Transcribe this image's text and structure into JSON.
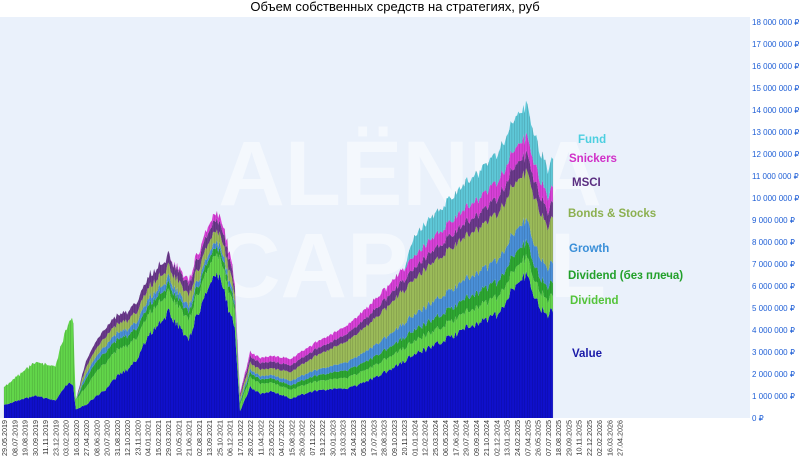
{
  "chart_data": {
    "type": "area",
    "stacked": true,
    "title": "Объем собственных средств на стратегиях, руб",
    "watermark": [
      "ALËNKA",
      "CAPITAL"
    ],
    "ylim": [
      0,
      18000000
    ],
    "y_ticks": [
      "0 ₽",
      "1 000 000 ₽",
      "2 000 000 ₽",
      "3 000 000 ₽",
      "4 000 000 ₽",
      "5 000 000 ₽",
      "6 000 000 ₽",
      "7 000 000 ₽",
      "8 000 000 ₽",
      "9 000 000 ₽",
      "10 000 000 ₽",
      "11 000 000 ₽",
      "12 000 000 ₽",
      "13 000 000 ₽",
      "14 000 000 ₽",
      "15 000 000 ₽",
      "16 000 000 ₽",
      "17 000 000 ₽",
      "18 000 000 ₽"
    ],
    "x_ticks": [
      "29.05.2019",
      "08.07.2019",
      "19.08.2019",
      "30.09.2019",
      "11.11.2019",
      "23.12.2019",
      "03.02.2020",
      "16.03.2020",
      "27.04.2020",
      "08.06.2020",
      "20.07.2020",
      "31.08.2020",
      "12.10.2020",
      "23.11.2020",
      "04.01.2021",
      "15.02.2021",
      "29.03.2021",
      "10.05.2021",
      "21.06.2021",
      "02.08.2021",
      "13.09.2021",
      "25.10.2021",
      "06.12.2021",
      "17.01.2022",
      "28.02.2022",
      "11.04.2022",
      "23.05.2022",
      "04.07.2022",
      "15.08.2022",
      "26.09.2022",
      "07.11.2022",
      "19.12.2022",
      "30.01.2023",
      "13.03.2023",
      "24.04.2023",
      "05.06.2023",
      "17.07.2023",
      "28.08.2023",
      "09.10.2023",
      "20.11.2023",
      "01.01.2024",
      "12.02.2024",
      "25.03.2024",
      "06.05.2024",
      "17.06.2024",
      "29.07.2024",
      "09.09.2024",
      "21.10.2024",
      "02.12.2024",
      "13.01.2025",
      "24.02.2025",
      "07.04.2025",
      "26.05.2025",
      "07.07.2025",
      "18.08.2025",
      "29.09.2025",
      "10.11.2025",
      "22.12.2025",
      "02.02.2026",
      "16.03.2026",
      "27.04.2026"
    ],
    "data_end_index": 53.5,
    "series": [
      {
        "name": "Value",
        "color": "#1010cc",
        "label_color": "#1a1aa8",
        "points": [
          [
            0,
            600000
          ],
          [
            3,
            1000000
          ],
          [
            5,
            800000
          ],
          [
            6,
            1500000
          ],
          [
            6.7,
            1600000
          ],
          [
            7,
            400000
          ],
          [
            8,
            600000
          ],
          [
            9,
            1000000
          ],
          [
            10,
            1300000
          ],
          [
            11,
            1900000
          ],
          [
            12,
            2200000
          ],
          [
            13,
            2700000
          ],
          [
            14,
            3700000
          ],
          [
            16,
            4800000
          ],
          [
            17,
            4200000
          ],
          [
            18,
            3600000
          ],
          [
            19,
            4900000
          ],
          [
            20,
            6000000
          ],
          [
            21,
            6500000
          ],
          [
            22,
            4800000
          ],
          [
            22.5,
            4200000
          ],
          [
            23,
            300000
          ],
          [
            24,
            1400000
          ],
          [
            25,
            1100000
          ],
          [
            26,
            1200000
          ],
          [
            28,
            900000
          ],
          [
            30,
            1200000
          ],
          [
            32,
            1300000
          ],
          [
            34,
            1400000
          ],
          [
            36,
            1800000
          ],
          [
            38,
            2300000
          ],
          [
            40,
            2900000
          ],
          [
            42,
            3300000
          ],
          [
            44,
            3800000
          ],
          [
            46,
            4300000
          ],
          [
            48,
            4700000
          ],
          [
            49,
            5300000
          ],
          [
            50,
            6300000
          ],
          [
            51,
            6500000
          ],
          [
            52,
            5200000
          ],
          [
            53,
            4600000
          ],
          [
            53.5,
            5000000
          ]
        ]
      },
      {
        "name": "Dividend",
        "color": "#62d64a",
        "label_color": "#55c43a",
        "points": [
          [
            0,
            800000
          ],
          [
            3,
            1500000
          ],
          [
            5,
            1600000
          ],
          [
            6,
            2500000
          ],
          [
            6.7,
            3200000
          ],
          [
            7,
            450000
          ],
          [
            8,
            800000
          ],
          [
            9,
            1100000
          ],
          [
            10,
            1200000
          ],
          [
            11,
            1200000
          ],
          [
            12,
            1100000
          ],
          [
            13,
            1000000
          ],
          [
            14,
            1000000
          ],
          [
            16,
            900000
          ],
          [
            17,
            900000
          ],
          [
            18,
            900000
          ],
          [
            19,
            900000
          ],
          [
            20,
            900000
          ],
          [
            21,
            900000
          ],
          [
            22,
            900000
          ],
          [
            22.5,
            800000
          ],
          [
            23,
            300000
          ],
          [
            24,
            450000
          ],
          [
            25,
            450000
          ],
          [
            26,
            400000
          ],
          [
            28,
            400000
          ],
          [
            30,
            400000
          ],
          [
            32,
            450000
          ],
          [
            34,
            500000
          ],
          [
            36,
            550000
          ],
          [
            38,
            600000
          ],
          [
            40,
            600000
          ],
          [
            42,
            650000
          ],
          [
            44,
            700000
          ],
          [
            46,
            750000
          ],
          [
            48,
            800000
          ],
          [
            49,
            800000
          ],
          [
            50,
            800000
          ],
          [
            51,
            800000
          ],
          [
            52,
            750000
          ],
          [
            53,
            700000
          ],
          [
            53.5,
            700000
          ]
        ]
      },
      {
        "name": "Dividend (без плеча)",
        "color": "#2ea832",
        "label_color": "#22a02a",
        "points": [
          [
            0,
            0
          ],
          [
            6.7,
            0
          ],
          [
            7,
            0
          ],
          [
            8,
            400000
          ],
          [
            10,
            500000
          ],
          [
            12,
            450000
          ],
          [
            14,
            400000
          ],
          [
            16,
            350000
          ],
          [
            18,
            350000
          ],
          [
            20,
            350000
          ],
          [
            22,
            300000
          ],
          [
            23,
            100000
          ],
          [
            24,
            200000
          ],
          [
            26,
            200000
          ],
          [
            28,
            200000
          ],
          [
            30,
            250000
          ],
          [
            32,
            300000
          ],
          [
            34,
            350000
          ],
          [
            36,
            400000
          ],
          [
            38,
            450000
          ],
          [
            40,
            500000
          ],
          [
            42,
            550000
          ],
          [
            44,
            600000
          ],
          [
            46,
            650000
          ],
          [
            48,
            700000
          ],
          [
            50,
            700000
          ],
          [
            51,
            700000
          ],
          [
            52,
            650000
          ],
          [
            53,
            600000
          ],
          [
            53.5,
            600000
          ]
        ]
      },
      {
        "name": "Growth",
        "color": "#4a90d9",
        "label_color": "#3a8fd8",
        "points": [
          [
            0,
            0
          ],
          [
            7,
            0
          ],
          [
            8,
            200000
          ],
          [
            10,
            300000
          ],
          [
            12,
            300000
          ],
          [
            14,
            300000
          ],
          [
            16,
            300000
          ],
          [
            18,
            250000
          ],
          [
            20,
            250000
          ],
          [
            22,
            250000
          ],
          [
            23,
            80000
          ],
          [
            24,
            150000
          ],
          [
            26,
            150000
          ],
          [
            28,
            200000
          ],
          [
            30,
            250000
          ],
          [
            32,
            300000
          ],
          [
            34,
            400000
          ],
          [
            36,
            500000
          ],
          [
            38,
            600000
          ],
          [
            40,
            700000
          ],
          [
            42,
            800000
          ],
          [
            44,
            850000
          ],
          [
            46,
            900000
          ],
          [
            48,
            1000000
          ],
          [
            50,
            1000000
          ],
          [
            51,
            1000000
          ],
          [
            52,
            950000
          ],
          [
            53,
            850000
          ],
          [
            53.5,
            900000
          ]
        ]
      },
      {
        "name": "Bonds & Stocks",
        "color": "#9bbb59",
        "label_color": "#8cb050",
        "points": [
          [
            0,
            0
          ],
          [
            7,
            0
          ],
          [
            8,
            300000
          ],
          [
            10,
            400000
          ],
          [
            12,
            400000
          ],
          [
            14,
            500000
          ],
          [
            16,
            500000
          ],
          [
            18,
            500000
          ],
          [
            20,
            500000
          ],
          [
            22,
            500000
          ],
          [
            23,
            150000
          ],
          [
            24,
            300000
          ],
          [
            26,
            300000
          ],
          [
            28,
            400000
          ],
          [
            30,
            600000
          ],
          [
            32,
            800000
          ],
          [
            34,
            1000000
          ],
          [
            36,
            1200000
          ],
          [
            38,
            1400000
          ],
          [
            40,
            1600000
          ],
          [
            42,
            1800000
          ],
          [
            44,
            1900000
          ],
          [
            46,
            2000000
          ],
          [
            48,
            2100000
          ],
          [
            50,
            2200000
          ],
          [
            51,
            2200000
          ],
          [
            52,
            2100000
          ],
          [
            53,
            1900000
          ],
          [
            53.5,
            2000000
          ]
        ]
      },
      {
        "name": "MSCI",
        "color": "#6b3a8c",
        "label_color": "#5a2d80",
        "points": [
          [
            0,
            0
          ],
          [
            7,
            0
          ],
          [
            8,
            300000
          ],
          [
            10,
            400000
          ],
          [
            12,
            400000
          ],
          [
            14,
            500000
          ],
          [
            16,
            500000
          ],
          [
            18,
            500000
          ],
          [
            20,
            500000
          ],
          [
            22,
            500000
          ],
          [
            23,
            100000
          ],
          [
            24,
            300000
          ],
          [
            26,
            300000
          ],
          [
            28,
            300000
          ],
          [
            30,
            300000
          ],
          [
            32,
            300000
          ],
          [
            34,
            350000
          ],
          [
            36,
            400000
          ],
          [
            38,
            450000
          ],
          [
            40,
            500000
          ],
          [
            42,
            550000
          ],
          [
            44,
            600000
          ],
          [
            46,
            650000
          ],
          [
            48,
            700000
          ],
          [
            50,
            800000
          ],
          [
            51,
            800000
          ],
          [
            52,
            750000
          ],
          [
            53,
            700000
          ],
          [
            53.5,
            700000
          ]
        ]
      },
      {
        "name": "Snickers",
        "color": "#d840d8",
        "label_color": "#d030c8",
        "points": [
          [
            0,
            0
          ],
          [
            16,
            0
          ],
          [
            18,
            200000
          ],
          [
            20,
            300000
          ],
          [
            22,
            300000
          ],
          [
            23,
            100000
          ],
          [
            24,
            200000
          ],
          [
            26,
            250000
          ],
          [
            28,
            300000
          ],
          [
            30,
            300000
          ],
          [
            32,
            350000
          ],
          [
            34,
            400000
          ],
          [
            36,
            450000
          ],
          [
            38,
            500000
          ],
          [
            40,
            550000
          ],
          [
            42,
            600000
          ],
          [
            44,
            650000
          ],
          [
            46,
            700000
          ],
          [
            48,
            750000
          ],
          [
            50,
            800000
          ],
          [
            51,
            800000
          ],
          [
            52,
            750000
          ],
          [
            53,
            700000
          ],
          [
            53.5,
            700000
          ]
        ]
      },
      {
        "name": "Fund",
        "color": "#5ec8d8",
        "label_color": "#4ccfe0",
        "points": [
          [
            0,
            0
          ],
          [
            39,
            0
          ],
          [
            40,
            900000
          ],
          [
            42,
            1000000
          ],
          [
            44,
            1100000
          ],
          [
            46,
            1200000
          ],
          [
            48,
            1300000
          ],
          [
            50,
            1400000
          ],
          [
            51,
            1400000
          ],
          [
            52,
            1300000
          ],
          [
            53,
            1250000
          ],
          [
            53.5,
            1300000
          ]
        ]
      }
    ],
    "legend_placement": "right of data, stacked labels"
  }
}
